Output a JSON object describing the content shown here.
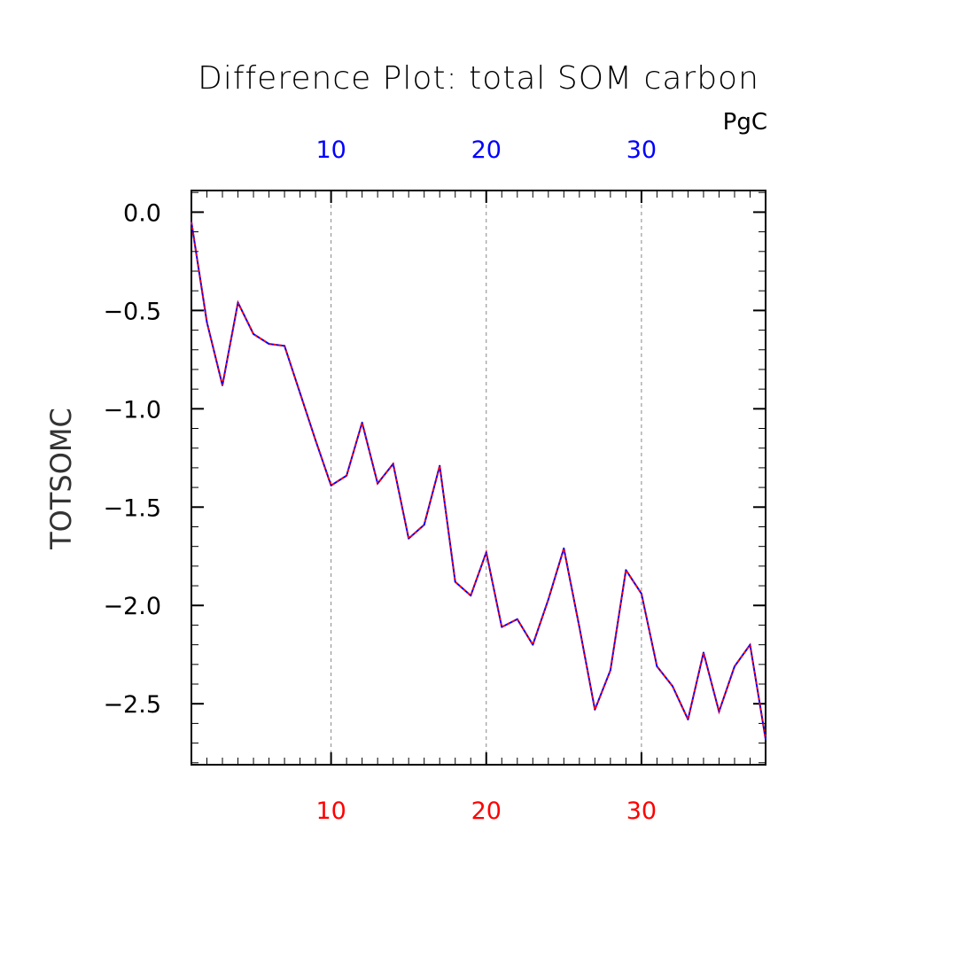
{
  "chart_data": {
    "type": "line",
    "title": "Difference Plot: total SOM carbon",
    "units": "PgC",
    "ylabel": "TOTSOMC",
    "xlabel": "",
    "xlim": [
      1,
      38
    ],
    "ylim": [
      -2.81,
      0.11
    ],
    "x_ticks": [
      10,
      20,
      30
    ],
    "y_ticks": [
      0.0,
      -0.5,
      -1.0,
      -1.5,
      -2.0,
      -2.5
    ],
    "y_tick_labels": [
      "0.0",
      "−0.5",
      "−1.0",
      "−1.5",
      "−2.0",
      "−2.5"
    ],
    "top_tick_labels": [
      "10",
      "20",
      "30"
    ],
    "bottom_tick_labels": [
      "10",
      "20",
      "30"
    ],
    "grid": "vertical dashed at major x ticks",
    "series": [
      {
        "color": "#0000ff",
        "dash_color": "#ff0000",
        "x": [
          1,
          2,
          3,
          4,
          5,
          6,
          7,
          8,
          9,
          10,
          11,
          12,
          13,
          14,
          15,
          16,
          17,
          18,
          19,
          20,
          21,
          22,
          23,
          24,
          25,
          26,
          27,
          28,
          29,
          30,
          31,
          32,
          33,
          34,
          35,
          36,
          37,
          38
        ],
        "values": [
          -0.05,
          -0.56,
          -0.88,
          -0.46,
          -0.62,
          -0.67,
          -0.68,
          -0.92,
          -1.16,
          -1.39,
          -1.34,
          -1.07,
          -1.38,
          -1.28,
          -1.66,
          -1.59,
          -1.29,
          -1.88,
          -1.95,
          -1.73,
          -2.11,
          -2.07,
          -2.2,
          -1.97,
          -1.71,
          -2.11,
          -2.53,
          -2.33,
          -1.82,
          -1.94,
          -2.31,
          -2.41,
          -2.58,
          -2.24,
          -2.54,
          -2.31,
          -2.2,
          -2.68
        ]
      }
    ]
  },
  "colors": {
    "top_axis_labels": "#0000ff",
    "bottom_axis_labels": "#ff0000",
    "line_primary": "#0000ff",
    "line_dash": "#ff0000",
    "grid": "#888888",
    "frame": "#000000"
  }
}
